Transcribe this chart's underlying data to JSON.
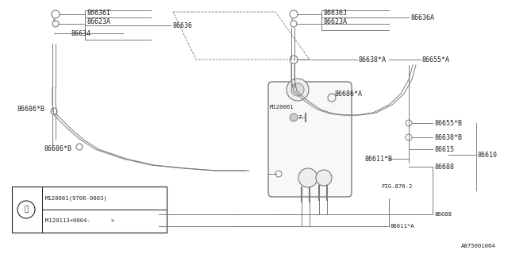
{
  "bg_color": "#ffffff",
  "line_color": "#7a7a7a",
  "text_color": "#222222",
  "diagram_id": "A875001064",
  "legend_row1": "M120061(9706-0003)",
  "legend_row2": "M120113<0004-      >",
  "font_size": 6.0,
  "small_font": 5.2
}
